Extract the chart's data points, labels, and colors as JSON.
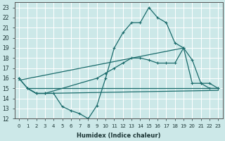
{
  "xlabel": "Humidex (Indice chaleur)",
  "bg_color": "#cce8e8",
  "grid_color": "#ffffff",
  "line_color": "#1a6b6b",
  "xlim": [
    -0.5,
    23.5
  ],
  "ylim": [
    12,
    23.5
  ],
  "xticks": [
    0,
    1,
    2,
    3,
    4,
    5,
    6,
    7,
    8,
    9,
    10,
    11,
    12,
    13,
    14,
    15,
    16,
    17,
    18,
    19,
    20,
    21,
    22,
    23
  ],
  "yticks": [
    12,
    13,
    14,
    15,
    16,
    17,
    18,
    19,
    20,
    21,
    22,
    23
  ],
  "line1_x": [
    0,
    1,
    2,
    3,
    4,
    5,
    6,
    7,
    8,
    9,
    10,
    11,
    12,
    13,
    14,
    15,
    16,
    17,
    18,
    19,
    20,
    21,
    22,
    23
  ],
  "line1_y": [
    16,
    15,
    14.5,
    14.5,
    14.5,
    13.2,
    12.8,
    12.5,
    12,
    13.3,
    16,
    19,
    20.5,
    21.5,
    21.5,
    23,
    22,
    21.5,
    19.5,
    19,
    15.5,
    15.5,
    15,
    15
  ],
  "line2_x": [
    0,
    1,
    2,
    3,
    9,
    10,
    11,
    12,
    13,
    14,
    15,
    16,
    17,
    18,
    19,
    20,
    21,
    22,
    23
  ],
  "line2_y": [
    16,
    15,
    14.5,
    14.5,
    16,
    16.5,
    17,
    17.5,
    18,
    18,
    17.8,
    17.5,
    17.5,
    17.5,
    19,
    17.8,
    15.5,
    15.5,
    15
  ],
  "line3_x": [
    1,
    2,
    3,
    23
  ],
  "line3_y": [
    15,
    14.5,
    14.5,
    14.8
  ],
  "line4_x": [
    1,
    23
  ],
  "line4_y": [
    15,
    15
  ],
  "line5_x": [
    0,
    19
  ],
  "line5_y": [
    15.8,
    19
  ]
}
